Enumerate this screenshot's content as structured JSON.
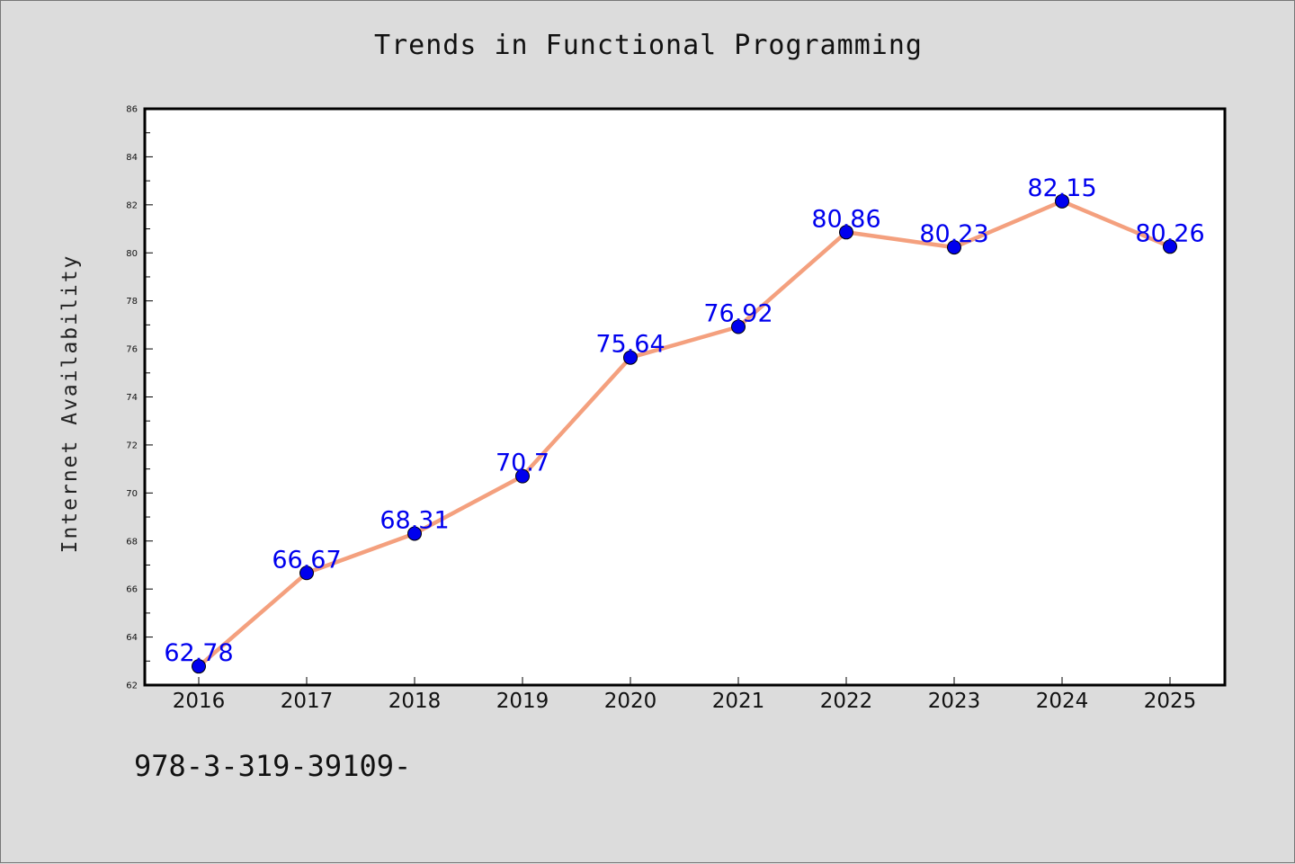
{
  "chart_data": {
    "type": "line",
    "title": "Trends in Functional Programming",
    "xlabel": "",
    "ylabel": "Internet Availability",
    "categories": [
      "2016",
      "2017",
      "2018",
      "2019",
      "2020",
      "2021",
      "2022",
      "2023",
      "2024",
      "2025"
    ],
    "series": [
      {
        "values": [
          62.78,
          66.67,
          68.31,
          70.7,
          75.64,
          76.92,
          80.86,
          80.23,
          82.15,
          80.26
        ],
        "data_labels": [
          "62.78",
          "66.67",
          "68.31",
          "70.7",
          "75.64",
          "76.92",
          "80.86",
          "80.23",
          "82.15",
          "80.26"
        ],
        "line_color": "#f4a07e",
        "marker_color": "#0000ee"
      }
    ],
    "ylim": [
      62,
      86
    ],
    "yticks": [
      "62",
      "64",
      "66",
      "68",
      "70",
      "72",
      "74",
      "76",
      "78",
      "80",
      "82",
      "84",
      "86"
    ],
    "grid": false,
    "legend": "none",
    "label_color": "#0000ee"
  },
  "footnote": "978-3-319-39109-"
}
